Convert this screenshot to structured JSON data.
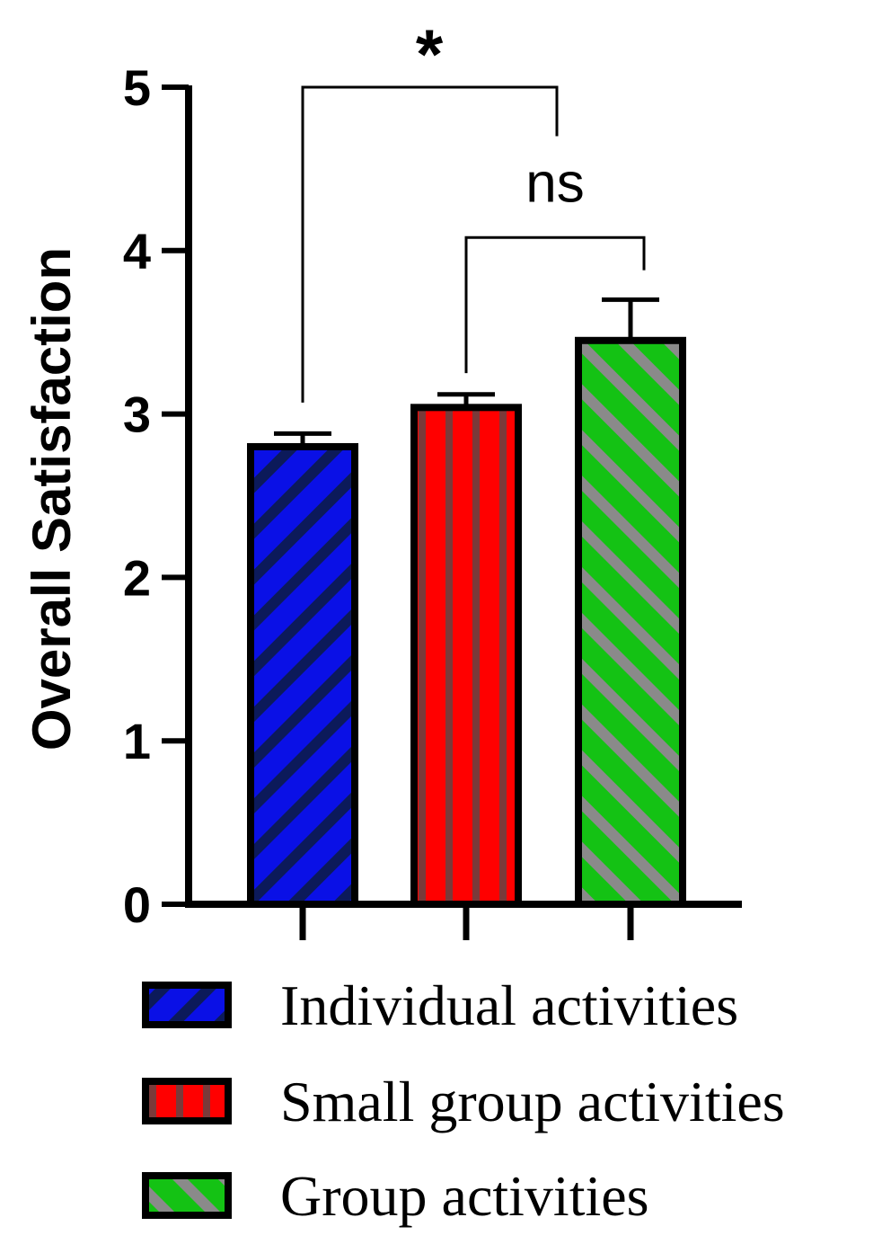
{
  "chart_data": {
    "type": "bar",
    "ylabel": "Overall Satisfaction",
    "xlabel": "",
    "ylim": [
      0,
      5
    ],
    "yticks": [
      "0",
      "1",
      "2",
      "3",
      "4",
      "5"
    ],
    "categories": [
      "Individual activities",
      "Small group activities",
      "Group activities"
    ],
    "values": [
      2.8,
      3.04,
      3.45
    ],
    "errors": [
      0.08,
      0.08,
      0.25
    ],
    "colors": {
      "Individual activities": {
        "base": "#0a10e6",
        "stripe": "#0c1a5a",
        "pattern": "diagonal"
      },
      "Small group activities": {
        "base": "#ff0000",
        "stripe": "#7a3a3a",
        "pattern": "vertical"
      },
      "Group activities": {
        "base": "#14c214",
        "stripe": "#8a8a8a",
        "pattern": "diagonal-reverse"
      }
    },
    "significance": [
      {
        "from": 0,
        "to": 2,
        "label": "*"
      },
      {
        "from": 1,
        "to": 2,
        "label": "ns"
      }
    ],
    "legend": {
      "placement": "bottom",
      "entries": [
        "Individual activities",
        "Small group activities",
        "Group activities"
      ]
    },
    "grid": false
  }
}
